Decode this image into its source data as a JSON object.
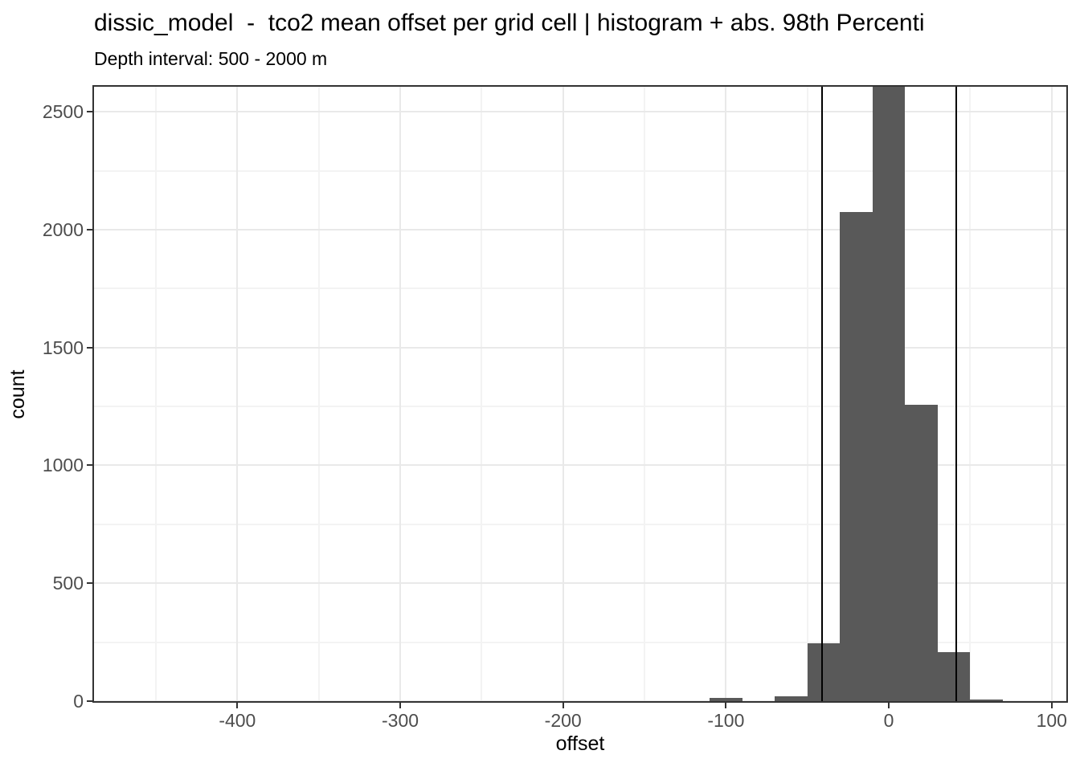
{
  "chart_data": {
    "type": "bar",
    "subtype": "histogram",
    "title": "dissic_model  -  tco2 mean offset per grid cell | histogram + abs. 98th Percenti",
    "subtitle": "Depth interval: 500 - 2000 m",
    "xlabel": "offset",
    "ylabel": "count",
    "xlim": [
      -488,
      109
    ],
    "ylim": [
      0,
      2606
    ],
    "grid": true,
    "legend": "none",
    "x_ticks": [
      -400,
      -300,
      -200,
      -100,
      0,
      100
    ],
    "x_tick_labels": [
      "-400",
      "-300",
      "-200",
      "-100",
      "0",
      "100"
    ],
    "x_minor_ticks": [
      -450,
      -350,
      -250,
      -150,
      -50,
      50
    ],
    "y_ticks": [
      0,
      500,
      1000,
      1500,
      2000,
      2500
    ],
    "y_tick_labels": [
      "0",
      "500",
      "1000",
      "1500",
      "2000",
      "2500"
    ],
    "y_minor_ticks": [
      250,
      750,
      1250,
      1750,
      2250
    ],
    "bin_width": 20,
    "bins": [
      {
        "x0": -110,
        "x1": -90,
        "count": 15
      },
      {
        "x0": -70,
        "x1": -50,
        "count": 21
      },
      {
        "x0": -50,
        "x1": -30,
        "count": 245
      },
      {
        "x0": -30,
        "x1": -10,
        "count": 2073
      },
      {
        "x0": -10,
        "x1": 10,
        "count": 2606,
        "clipped_at_top": true
      },
      {
        "x0": 10,
        "x1": 30,
        "count": 1256
      },
      {
        "x0": 30,
        "x1": 50,
        "count": 209
      },
      {
        "x0": 50,
        "x1": 70,
        "count": 8
      }
    ],
    "percentile_lines": {
      "label": "abs. 98th percentile",
      "values": [
        -41.2,
        41.2
      ]
    },
    "colors": {
      "bar_fill": "#595959",
      "percentile_line": "#000000",
      "panel_border": "#333333",
      "grid_major": "#e9e9e9",
      "grid_minor": "#f3f3f3",
      "tick_mark": "#333333",
      "tick_label": "#4d4d4d",
      "text": "#000000",
      "panel_background": "#ffffff"
    }
  }
}
